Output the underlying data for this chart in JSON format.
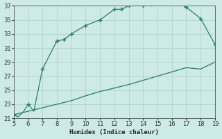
{
  "xlabel": "Humidex (Indice chaleur)",
  "line_color": "#2a7a6b",
  "bg_color": "#cdeae6",
  "grid_color": "#aed4cf",
  "xlim": [
    5,
    19
  ],
  "ylim": [
    21,
    37
  ],
  "xticks": [
    5,
    6,
    7,
    8,
    9,
    10,
    11,
    12,
    13,
    14,
    15,
    16,
    17,
    18,
    19
  ],
  "yticks": [
    21,
    23,
    25,
    27,
    29,
    31,
    33,
    35,
    37
  ],
  "upper_x": [
    5,
    5.3,
    5.7,
    6,
    6.4,
    7,
    8,
    8.5,
    9,
    10,
    11,
    12,
    12.5,
    13,
    14,
    14.5,
    15,
    15.5,
    16,
    16.5,
    17,
    18,
    19
  ],
  "upper_y": [
    21.5,
    21.2,
    22.0,
    23.0,
    22.0,
    28.0,
    32.0,
    32.2,
    33.0,
    34.2,
    35.0,
    36.5,
    36.5,
    37.0,
    37.0,
    37.2,
    37.3,
    37.4,
    37.4,
    37.3,
    36.8,
    35.2,
    31.5
  ],
  "lower_x": [
    5,
    6,
    7,
    8,
    9,
    10,
    11,
    12,
    13,
    14,
    15,
    16,
    17,
    18,
    19
  ],
  "lower_y": [
    21.5,
    22.0,
    22.5,
    23.0,
    23.5,
    24.2,
    24.8,
    25.3,
    25.8,
    26.4,
    27.0,
    27.6,
    28.2,
    28.0,
    29.0
  ],
  "marker_x": [
    5,
    6,
    7,
    8,
    8.5,
    9,
    10,
    11,
    12,
    12.5,
    13,
    14,
    14.5,
    15,
    16,
    17,
    18,
    19
  ],
  "marker_y": [
    21.5,
    23.0,
    28.0,
    32.0,
    32.2,
    33.0,
    34.2,
    35.0,
    36.5,
    36.5,
    37.0,
    37.0,
    37.2,
    37.3,
    37.4,
    36.8,
    35.2,
    31.5
  ]
}
